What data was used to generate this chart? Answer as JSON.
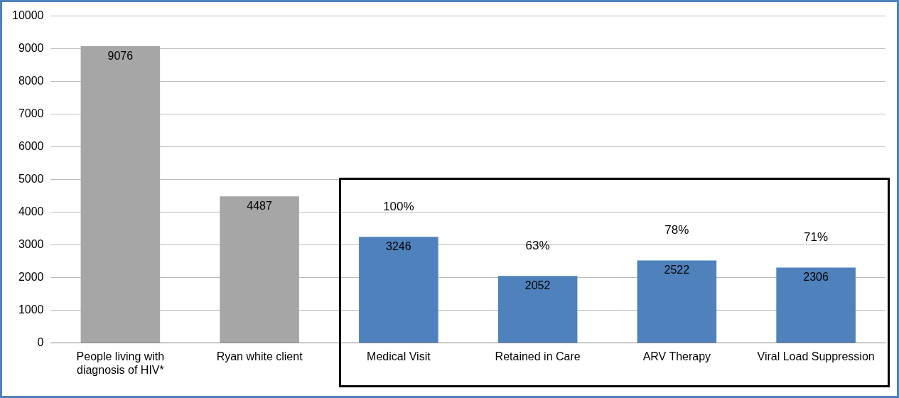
{
  "chart_data": {
    "type": "bar",
    "categories": [
      "People living with diagnosis of HIV*",
      "Ryan white client",
      "Medical Visit",
      "Retained in Care",
      "ARV Therapy",
      "Viral Load Suppression"
    ],
    "values": [
      9076,
      4487,
      3246,
      2052,
      2522,
      2306
    ],
    "colors": [
      "#a6a6a6",
      "#a6a6a6",
      "#4f81bd",
      "#4f81bd",
      "#4f81bd",
      "#4f81bd"
    ],
    "data_labels": true,
    "annotations": [
      {
        "text": "100%",
        "x": "Medical Visit",
        "y": 3246
      },
      {
        "text": "63%",
        "x": "Retained in Care",
        "y": 2052
      },
      {
        "text": "78%",
        "x": "ARV Therapy",
        "y": 2522
      },
      {
        "text": "71%",
        "x": "Viral Load Suppression",
        "y": 2306
      }
    ],
    "ylim": [
      0,
      10000
    ],
    "yticks": [
      0,
      1000,
      2000,
      3000,
      4000,
      5000,
      6000,
      7000,
      8000,
      9000,
      10000
    ],
    "grid": "y",
    "legend": false
  }
}
